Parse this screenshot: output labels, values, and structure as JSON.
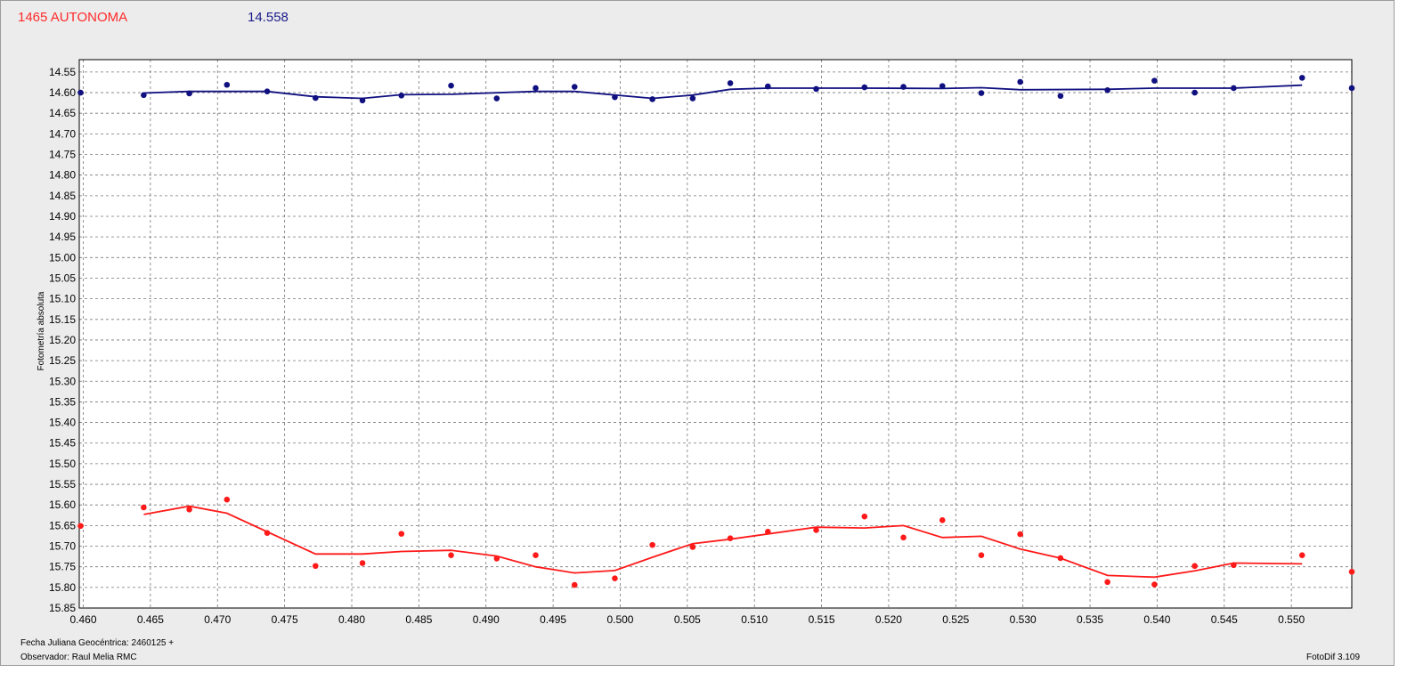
{
  "header": {
    "target_title": "1465 AUTONOMA",
    "target_value": "14.558"
  },
  "footer": {
    "date_label": "Fecha Juliana Geocéntrica: 2460125 +",
    "observer_label": "Observador: Raul Melia RMC",
    "software_version": "FotoDif 3.109"
  },
  "colors": {
    "series_top": "#101080",
    "series_bottom": "#ff1a1a",
    "grid": "#777777",
    "plot_background": "#ffffff",
    "window_background": "#ececec"
  },
  "chart_data": {
    "type": "scatter",
    "ylabel": "Fotometría absoluta",
    "xlabel": "",
    "xlim": [
      0.4597,
      0.5545
    ],
    "ylim": [
      15.85,
      14.52
    ],
    "y_inverted": true,
    "grid": true,
    "x_ticks": [
      "0.460",
      "0.465",
      "0.470",
      "0.475",
      "0.480",
      "0.485",
      "0.490",
      "0.495",
      "0.500",
      "0.505",
      "0.510",
      "0.515",
      "0.520",
      "0.525",
      "0.530",
      "0.535",
      "0.540",
      "0.545",
      "0.550"
    ],
    "y_ticks": [
      "14.55",
      "14.60",
      "14.65",
      "14.70",
      "14.75",
      "14.80",
      "14.85",
      "14.90",
      "14.95",
      "15.00",
      "15.05",
      "15.10",
      "15.15",
      "15.20",
      "15.25",
      "15.30",
      "15.35",
      "15.40",
      "15.45",
      "15.50",
      "15.55",
      "15.60",
      "15.65",
      "15.70",
      "15.75",
      "15.80",
      "15.85"
    ],
    "series": [
      {
        "points": [
          [
            0.4598,
            14.6
          ],
          [
            0.4645,
            14.606
          ],
          [
            0.4679,
            14.602
          ],
          [
            0.4707,
            14.581
          ],
          [
            0.4737,
            14.597
          ],
          [
            0.4773,
            14.613
          ],
          [
            0.4808,
            14.619
          ],
          [
            0.4837,
            14.607
          ],
          [
            0.4874,
            14.583
          ],
          [
            0.4908,
            14.614
          ],
          [
            0.4937,
            14.589
          ],
          [
            0.4966,
            14.586
          ],
          [
            0.4996,
            14.611
          ],
          [
            0.5024,
            14.616
          ],
          [
            0.5054,
            14.614
          ],
          [
            0.5082,
            14.577
          ],
          [
            0.511,
            14.585
          ],
          [
            0.5146,
            14.591
          ],
          [
            0.5182,
            14.587
          ],
          [
            0.5211,
            14.586
          ],
          [
            0.524,
            14.584
          ],
          [
            0.5269,
            14.601
          ],
          [
            0.5298,
            14.574
          ],
          [
            0.5328,
            14.608
          ],
          [
            0.5363,
            14.594
          ],
          [
            0.5398,
            14.571
          ],
          [
            0.5428,
            14.6
          ],
          [
            0.5457,
            14.589
          ],
          [
            0.5508,
            14.564
          ],
          [
            0.5545,
            14.589
          ]
        ],
        "fit": [
          [
            0.4645,
            14.601
          ],
          [
            0.4679,
            14.597
          ],
          [
            0.4737,
            14.597
          ],
          [
            0.4773,
            14.61
          ],
          [
            0.4808,
            14.614
          ],
          [
            0.4837,
            14.605
          ],
          [
            0.4874,
            14.604
          ],
          [
            0.4937,
            14.597
          ],
          [
            0.4966,
            14.597
          ],
          [
            0.5024,
            14.614
          ],
          [
            0.5054,
            14.606
          ],
          [
            0.5082,
            14.592
          ],
          [
            0.511,
            14.589
          ],
          [
            0.5182,
            14.589
          ],
          [
            0.524,
            14.59
          ],
          [
            0.5269,
            14.588
          ],
          [
            0.5298,
            14.593
          ],
          [
            0.5363,
            14.592
          ],
          [
            0.5398,
            14.589
          ],
          [
            0.5457,
            14.589
          ],
          [
            0.5508,
            14.582
          ]
        ]
      },
      {
        "points": [
          [
            0.4598,
            15.651
          ],
          [
            0.4645,
            15.606
          ],
          [
            0.4679,
            15.611
          ],
          [
            0.4707,
            15.587
          ],
          [
            0.4737,
            15.668
          ],
          [
            0.4773,
            15.748
          ],
          [
            0.4808,
            15.741
          ],
          [
            0.4837,
            15.67
          ],
          [
            0.4874,
            15.722
          ],
          [
            0.4908,
            15.73
          ],
          [
            0.4937,
            15.722
          ],
          [
            0.4966,
            15.794
          ],
          [
            0.4996,
            15.778
          ],
          [
            0.5024,
            15.697
          ],
          [
            0.5054,
            15.702
          ],
          [
            0.5082,
            15.681
          ],
          [
            0.511,
            15.665
          ],
          [
            0.5146,
            15.661
          ],
          [
            0.5182,
            15.628
          ],
          [
            0.5211,
            15.679
          ],
          [
            0.524,
            15.637
          ],
          [
            0.5269,
            15.722
          ],
          [
            0.5298,
            15.671
          ],
          [
            0.5328,
            15.729
          ],
          [
            0.5363,
            15.787
          ],
          [
            0.5398,
            15.793
          ],
          [
            0.5428,
            15.748
          ],
          [
            0.5457,
            15.746
          ],
          [
            0.5508,
            15.722
          ],
          [
            0.5545,
            15.762
          ]
        ],
        "fit": [
          [
            0.4645,
            15.623
          ],
          [
            0.4679,
            15.603
          ],
          [
            0.4707,
            15.62
          ],
          [
            0.4773,
            15.719
          ],
          [
            0.4808,
            15.719
          ],
          [
            0.4837,
            15.713
          ],
          [
            0.4874,
            15.71
          ],
          [
            0.4908,
            15.724
          ],
          [
            0.4937,
            15.75
          ],
          [
            0.4966,
            15.765
          ],
          [
            0.4996,
            15.759
          ],
          [
            0.5024,
            15.727
          ],
          [
            0.5054,
            15.694
          ],
          [
            0.5082,
            15.683
          ],
          [
            0.5146,
            15.654
          ],
          [
            0.5182,
            15.656
          ],
          [
            0.5211,
            15.65
          ],
          [
            0.524,
            15.679
          ],
          [
            0.5269,
            15.676
          ],
          [
            0.5298,
            15.707
          ],
          [
            0.5328,
            15.729
          ],
          [
            0.5363,
            15.771
          ],
          [
            0.5398,
            15.775
          ],
          [
            0.5428,
            15.76
          ],
          [
            0.5457,
            15.741
          ],
          [
            0.5508,
            15.743
          ]
        ]
      }
    ]
  }
}
